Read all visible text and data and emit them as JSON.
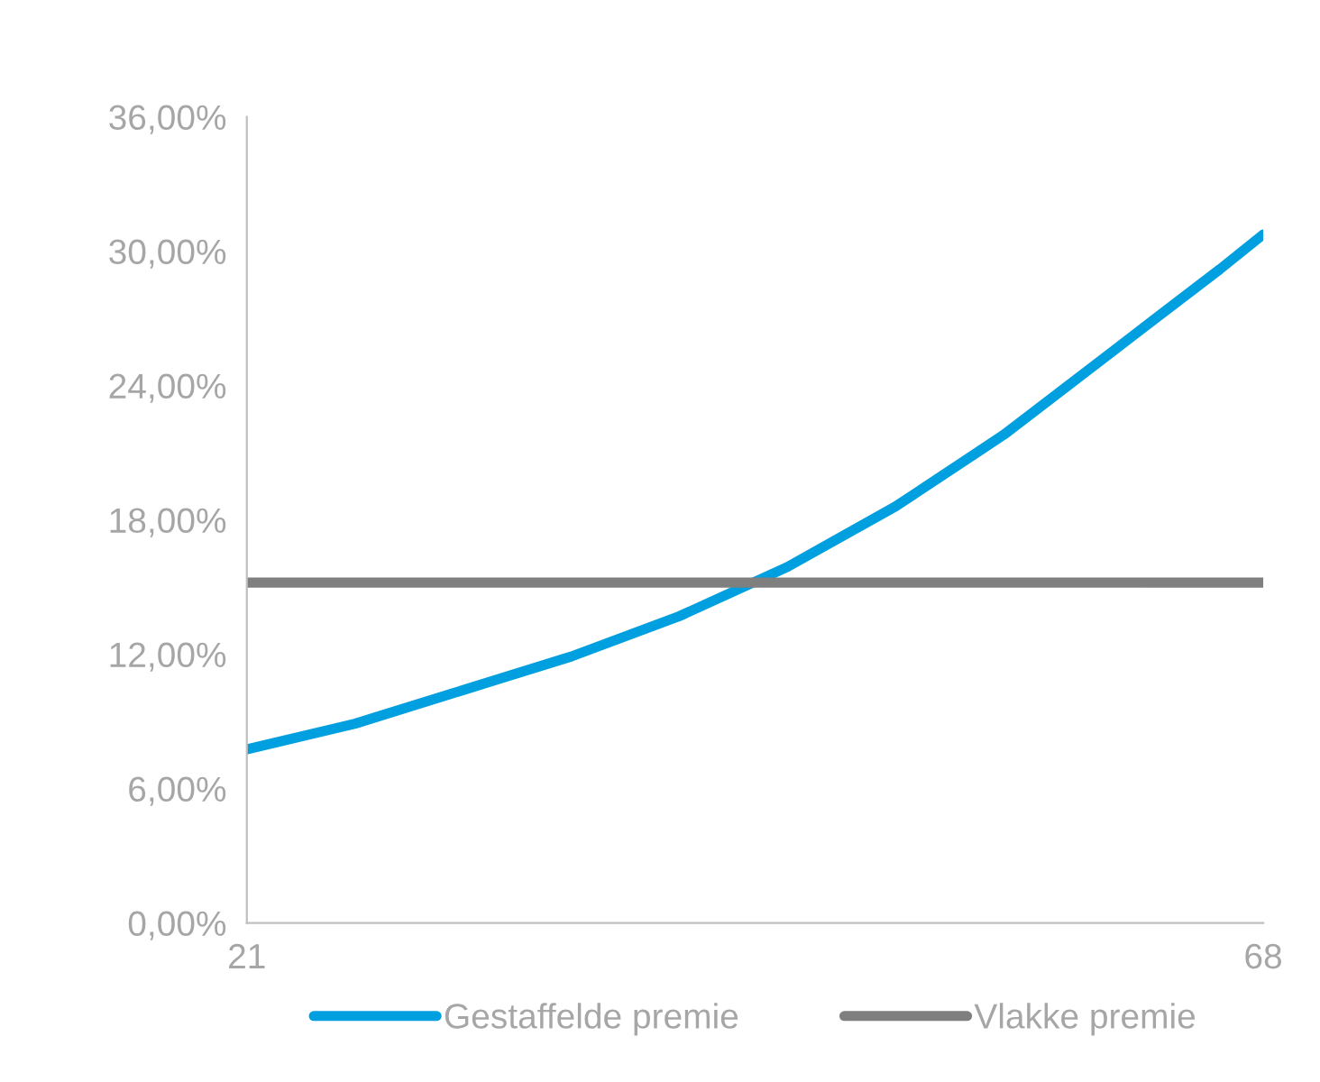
{
  "chart_data": {
    "type": "line",
    "x": [
      21,
      26,
      31,
      36,
      41,
      46,
      51,
      56,
      61,
      66,
      68
    ],
    "series": [
      {
        "name": "Gestaffelde premie",
        "color": "#00a0e0",
        "values": [
          7.75,
          8.9,
          10.4,
          11.9,
          13.7,
          15.9,
          18.6,
          21.8,
          25.5,
          29.2,
          30.75
        ]
      },
      {
        "name": "Vlakke premie",
        "color": "#7f7f7f",
        "values": [
          15.2,
          15.2,
          15.2,
          15.2,
          15.2,
          15.2,
          15.2,
          15.2,
          15.2,
          15.2,
          15.2
        ]
      }
    ],
    "xlim": [
      21,
      68
    ],
    "xticks": [
      21,
      68
    ],
    "ylim": [
      0,
      36
    ],
    "yticks": [
      {
        "value": 0,
        "label": "0,00%"
      },
      {
        "value": 6,
        "label": "6,00%"
      },
      {
        "value": 12,
        "label": "12,00%"
      },
      {
        "value": 18,
        "label": "18,00%"
      },
      {
        "value": 24,
        "label": "24,00%"
      },
      {
        "value": 30,
        "label": "30,00%"
      },
      {
        "value": 36,
        "label": "36,00%"
      }
    ],
    "grid": false,
    "legend": "bottom",
    "marker": "none",
    "line_style": "solid"
  }
}
